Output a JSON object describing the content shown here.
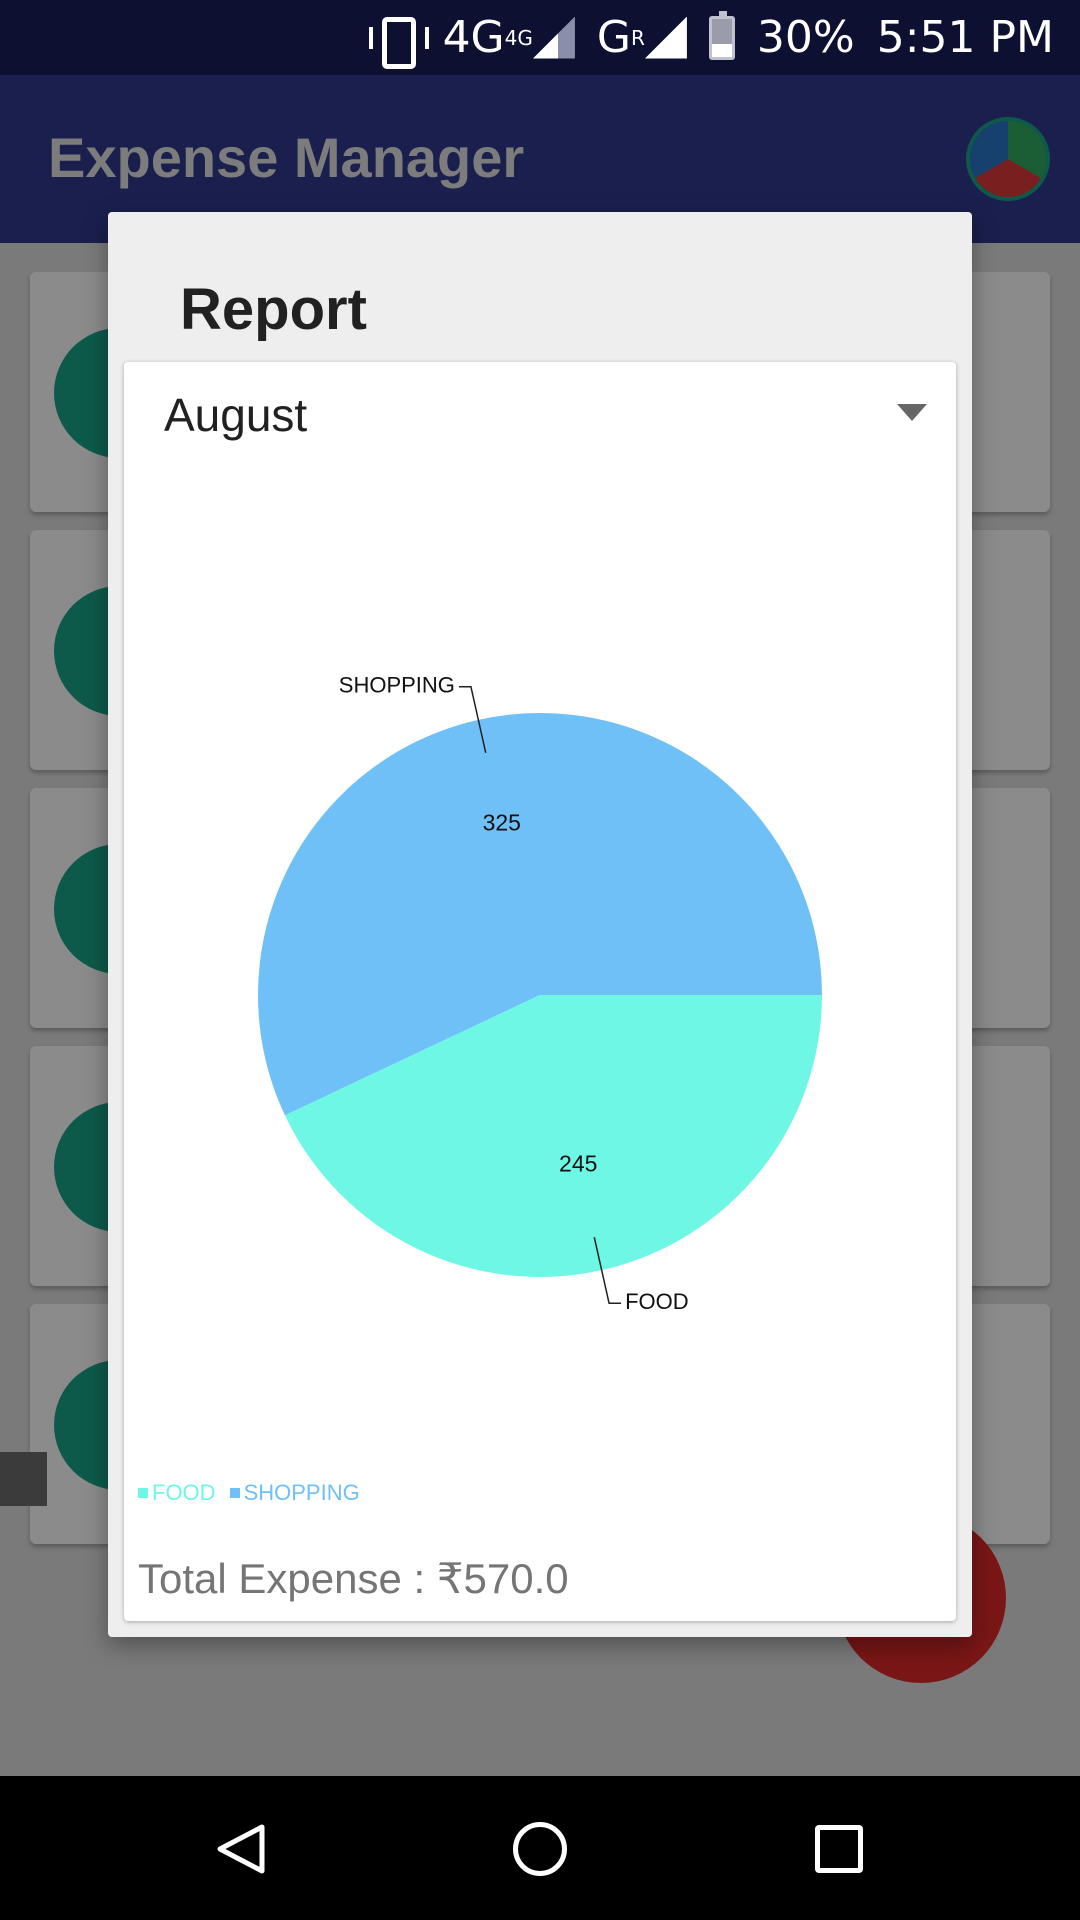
{
  "status_bar": {
    "network_1": "4G",
    "network_1_sup": "4G",
    "network_2": "G",
    "network_2_sup": "R",
    "battery": "30%",
    "time": "5:51 PM"
  },
  "app_bar": {
    "title": "Expense Manager"
  },
  "dialog": {
    "title": "Report",
    "month": "August",
    "total": "Total Expense : ₹570.0"
  },
  "chart_data": {
    "type": "pie",
    "categories": [
      "SHOPPING",
      "FOOD"
    ],
    "values": [
      325,
      245
    ],
    "colors": [
      "#6fc0f7",
      "#6ff7e6"
    ],
    "legend": [
      "FOOD",
      "SHOPPING"
    ],
    "legend_colors": [
      "#6ff7e6",
      "#6fc0f7"
    ],
    "legend_placement": "bottom-left"
  },
  "colors": {
    "status_bar": "#0d1030",
    "app_bar": "#1a1f4d",
    "dialog_bg": "#eeeeee"
  }
}
